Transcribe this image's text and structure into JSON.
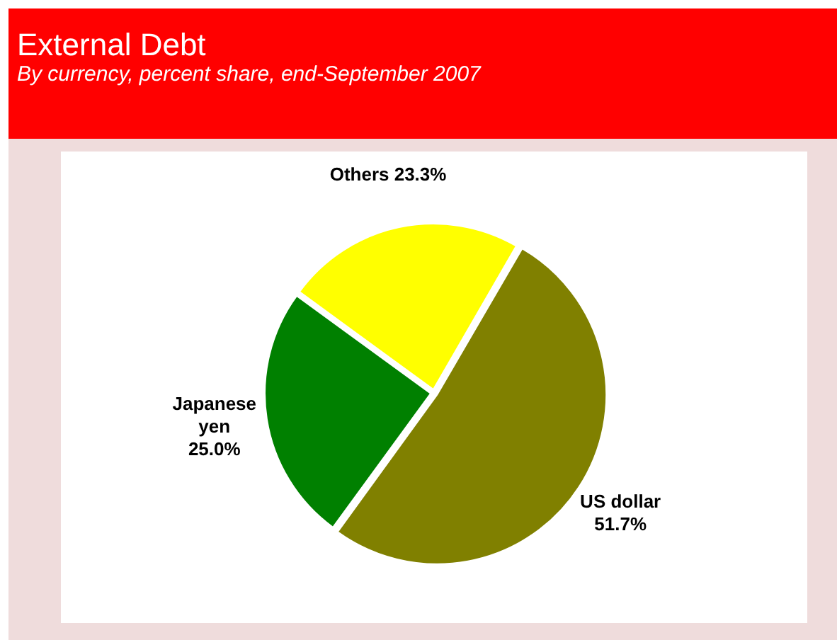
{
  "chart_data": {
    "type": "pie",
    "title": "External Debt",
    "subtitle": "By currency, percent share, end-September 2007",
    "categories": [
      "US dollar",
      "Japanese yen",
      "Others"
    ],
    "values": [
      51.7,
      25.0,
      23.3
    ],
    "colors": [
      "#808000",
      "#008000",
      "#ffff00"
    ],
    "value_labels": [
      "51.7%",
      "25.0%",
      "23.3%"
    ]
  }
}
